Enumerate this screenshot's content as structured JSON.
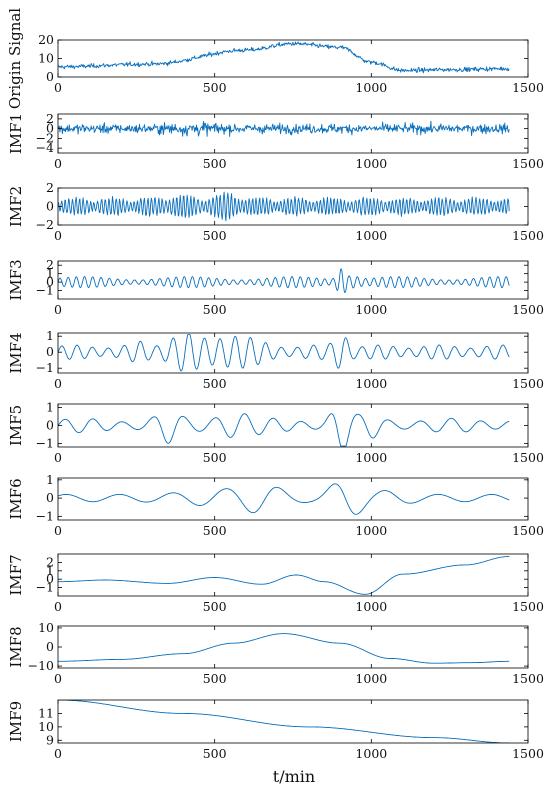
{
  "chart_data": [
    {
      "type": "line",
      "ylabel": "Origin Signal",
      "xlim": [
        0,
        1500
      ],
      "ylim": [
        0,
        20
      ],
      "yticks": [
        "0",
        "10",
        "20"
      ],
      "xticks": [
        "0",
        "500",
        "1000",
        "1500"
      ],
      "series": [
        {
          "x": [
            0,
            300,
            600,
            750,
            900,
            1000,
            1100,
            1250,
            1440
          ],
          "y": [
            5.5,
            7,
            14.5,
            18,
            16,
            8,
            3.5,
            4,
            4.5
          ]
        }
      ]
    },
    {
      "type": "line",
      "ylabel": "IMF1",
      "xlim": [
        0,
        1500
      ],
      "ylim": [
        -5,
        3
      ],
      "yticks": [
        "2",
        "0",
        "−2",
        "−4"
      ],
      "xticks": [
        "0",
        "500",
        "1000",
        "1500"
      ],
      "series": [
        {
          "x": [
            0,
            1440
          ],
          "amplitude": 2.5
        }
      ]
    },
    {
      "type": "line",
      "ylabel": "IMF2",
      "xlim": [
        0,
        1500
      ],
      "ylim": [
        -2,
        2
      ],
      "yticks": [
        "2",
        "0",
        "−2"
      ],
      "xticks": [
        "0",
        "500",
        "1000",
        "1500"
      ],
      "series": [
        {
          "x": [
            0,
            1440
          ],
          "amplitude": 1.6
        }
      ]
    },
    {
      "type": "line",
      "ylabel": "IMF3",
      "xlim": [
        0,
        1500
      ],
      "ylim": [
        -2,
        2.5
      ],
      "yticks": [
        "2",
        "1",
        "0",
        "−1"
      ],
      "xticks": [
        "0",
        "500",
        "1000",
        "1500"
      ],
      "series": [
        {
          "x": [
            0,
            1440
          ],
          "amplitude": 2
        }
      ]
    },
    {
      "type": "line",
      "ylabel": "IMF4",
      "xlim": [
        0,
        1500
      ],
      "ylim": [
        -1.3,
        1.2
      ],
      "yticks": [
        "1",
        "0",
        "−1"
      ],
      "xticks": [
        "0",
        "500",
        "1000",
        "1500"
      ],
      "series": [
        {
          "x": [
            0,
            1440
          ],
          "amplitude": 1.1
        }
      ]
    },
    {
      "type": "line",
      "ylabel": "IMF5",
      "xlim": [
        0,
        1500
      ],
      "ylim": [
        -1.2,
        1.2
      ],
      "yticks": [
        "1",
        "0",
        "−1"
      ],
      "xticks": [
        "0",
        "500",
        "1000",
        "1500"
      ],
      "series": [
        {
          "x": [
            0,
            1440
          ],
          "amplitude": 1.1
        }
      ]
    },
    {
      "type": "line",
      "ylabel": "IMF6",
      "xlim": [
        0,
        1500
      ],
      "ylim": [
        -1.2,
        1.1
      ],
      "yticks": [
        "1",
        "0",
        "−1"
      ],
      "xticks": [
        "0",
        "500",
        "1000",
        "1500"
      ],
      "series": [
        {
          "x": [
            0,
            1440
          ],
          "amplitude": 1
        }
      ]
    },
    {
      "type": "line",
      "ylabel": "IMF7",
      "xlim": [
        0,
        1500
      ],
      "ylim": [
        -2,
        3
      ],
      "yticks": [
        "2",
        "1",
        "0",
        "−1"
      ],
      "xticks": [
        "0",
        "500",
        "1000",
        "1500"
      ],
      "series": [
        {
          "x": [
            0,
            150,
            350,
            500,
            650,
            760,
            850,
            980,
            1100,
            1300,
            1440
          ],
          "y": [
            -0.3,
            -0.1,
            -0.5,
            0.2,
            -0.6,
            0.5,
            -0.3,
            -1.8,
            0.6,
            1.7,
            2.7
          ]
        }
      ]
    },
    {
      "type": "line",
      "ylabel": "IMF8",
      "xlim": [
        0,
        1500
      ],
      "ylim": [
        -11,
        11
      ],
      "yticks": [
        "10",
        "0",
        "−10"
      ],
      "xticks": [
        "0",
        "500",
        "1000",
        "1500"
      ],
      "series": [
        {
          "x": [
            0,
            200,
            400,
            560,
            720,
            900,
            1060,
            1200,
            1320,
            1440
          ],
          "y": [
            -7.5,
            -6.5,
            -3.5,
            2,
            7,
            2,
            -6,
            -8.5,
            -8.2,
            -7.5
          ]
        }
      ]
    },
    {
      "type": "line",
      "ylabel": "IMF9",
      "xlim": [
        0,
        1500
      ],
      "ylim": [
        8.8,
        12
      ],
      "yticks": [
        "11",
        "10",
        "9"
      ],
      "xticks": [
        "0",
        "500",
        "1000",
        "1500"
      ],
      "series": [
        {
          "x": [
            0,
            400,
            800,
            1200,
            1440
          ],
          "y": [
            12,
            11,
            10,
            9.2,
            8.8
          ]
        }
      ]
    }
  ],
  "xlabel": "t/min"
}
